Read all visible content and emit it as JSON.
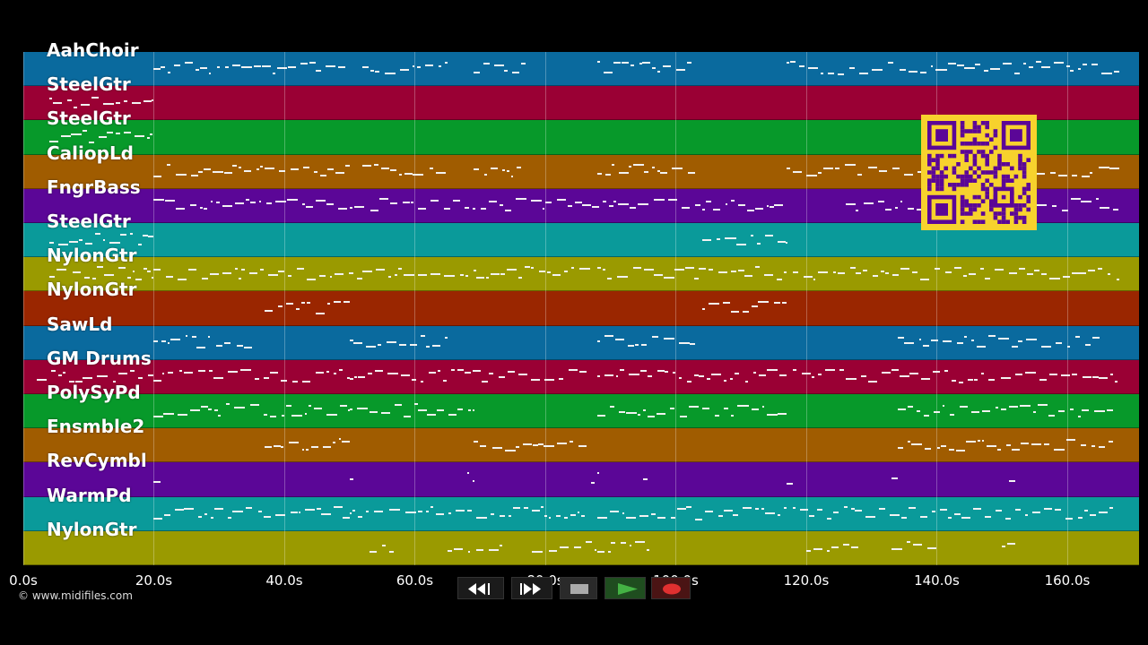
{
  "tracks": [
    {
      "name": "AahChoir",
      "color": "#0a6a9e"
    },
    {
      "name": "SteelGtr",
      "color": "#9a0034"
    },
    {
      "name": "SteelGtr",
      "color": "#07992a"
    },
    {
      "name": "CaliopLd",
      "color": "#a05c00"
    },
    {
      "name": "FngrBass",
      "color": "#5b0697"
    },
    {
      "name": "SteelGtr",
      "color": "#0a9a9a"
    },
    {
      "name": "NylonGtr",
      "color": "#9a9a00"
    },
    {
      "name": "NylonGtr",
      "color": "#9a2600"
    },
    {
      "name": "SawLd",
      "color": "#0a6a9e"
    },
    {
      "name": "GM Drums",
      "color": "#9a0034"
    },
    {
      "name": "PolySyPd",
      "color": "#07992a"
    },
    {
      "name": "Ensmble2",
      "color": "#a05c00"
    },
    {
      "name": "RevCymbl",
      "color": "#5b0697"
    },
    {
      "name": "WarmPd",
      "color": "#0a9a9a"
    },
    {
      "name": "NylonGtr",
      "color": "#9a9a00"
    }
  ],
  "time_axis": {
    "start_s": 0,
    "end_s": 171,
    "ticks": [
      "0.0s",
      "20.0s",
      "40.0s",
      "60.0s",
      "80.0s",
      "100.0s",
      "120.0s",
      "140.0s",
      "160.0s"
    ],
    "tick_values": [
      0,
      20,
      40,
      60,
      80,
      100,
      120,
      140,
      160
    ]
  },
  "note_regions": [
    [
      [
        20,
        50
      ],
      [
        52,
        65
      ],
      [
        69,
        77
      ],
      [
        88,
        103
      ],
      [
        117,
        168
      ]
    ],
    [
      [
        4,
        20
      ]
    ],
    [
      [
        4,
        20
      ]
    ],
    [
      [
        20,
        50
      ],
      [
        52,
        65
      ],
      [
        69,
        77
      ],
      [
        88,
        103
      ],
      [
        117,
        168
      ]
    ],
    [
      [
        20,
        50
      ],
      [
        50,
        117
      ],
      [
        126,
        168
      ]
    ],
    [
      [
        4,
        20
      ],
      [
        104,
        117
      ]
    ],
    [
      [
        4,
        20
      ],
      [
        20,
        52
      ],
      [
        52,
        87
      ],
      [
        88,
        117
      ],
      [
        118,
        168
      ]
    ],
    [
      [
        37,
        50
      ],
      [
        104,
        117
      ]
    ],
    [
      [
        20,
        35
      ],
      [
        50,
        65
      ],
      [
        88,
        103
      ],
      [
        134,
        165
      ]
    ],
    [
      [
        2,
        20
      ],
      [
        20,
        50
      ],
      [
        50,
        87
      ],
      [
        88,
        117
      ],
      [
        118,
        168
      ]
    ],
    [
      [
        20,
        50
      ],
      [
        50,
        69
      ],
      [
        88,
        117
      ],
      [
        134,
        167
      ]
    ],
    [
      [
        37,
        50
      ],
      [
        69,
        87
      ],
      [
        134,
        167
      ]
    ],
    [
      [
        20,
        21
      ],
      [
        50,
        51
      ],
      [
        68,
        69
      ],
      [
        87,
        88
      ],
      [
        95,
        96
      ],
      [
        117,
        118
      ],
      [
        133,
        134
      ],
      [
        151,
        152
      ]
    ],
    [
      [
        20,
        50
      ],
      [
        50,
        86
      ],
      [
        88,
        117
      ],
      [
        118,
        167
      ]
    ],
    [
      [
        53,
        57
      ],
      [
        65,
        74
      ],
      [
        78,
        90
      ],
      [
        90,
        96
      ],
      [
        120,
        128
      ],
      [
        133,
        140
      ],
      [
        150,
        152
      ]
    ]
  ],
  "copyright": "© www.midifiles.com",
  "transport": {
    "rewind": "rewind-icon",
    "fast_forward": "fast-forward-icon",
    "stop": "stop-icon",
    "play": "play-icon",
    "record": "record-icon"
  },
  "colors": {
    "background": "#000000",
    "qr_background": "#f7d22d",
    "qr_foreground": "#5b0697",
    "play_green": "#44b244",
    "record_red": "#e03030"
  }
}
